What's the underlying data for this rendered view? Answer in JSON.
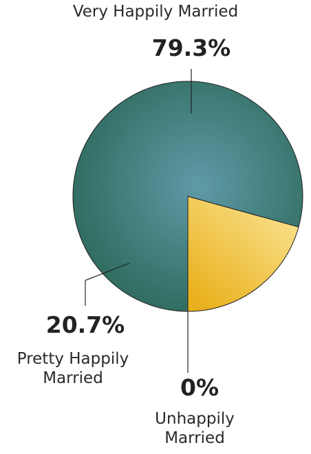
{
  "chart_data": {
    "type": "pie",
    "title": "",
    "slices": [
      {
        "label": "Very Happily Married",
        "value": 79.3,
        "value_label": "79.3%",
        "color": "#2e6a5c"
      },
      {
        "label": "Pretty Happily Married",
        "value": 20.7,
        "value_label": "20.7%",
        "color": "#f0bf2e"
      },
      {
        "label": "Unhappily Married",
        "value": 0,
        "value_label": "0%",
        "color": "#9a9a9a"
      }
    ],
    "legend": "none"
  }
}
